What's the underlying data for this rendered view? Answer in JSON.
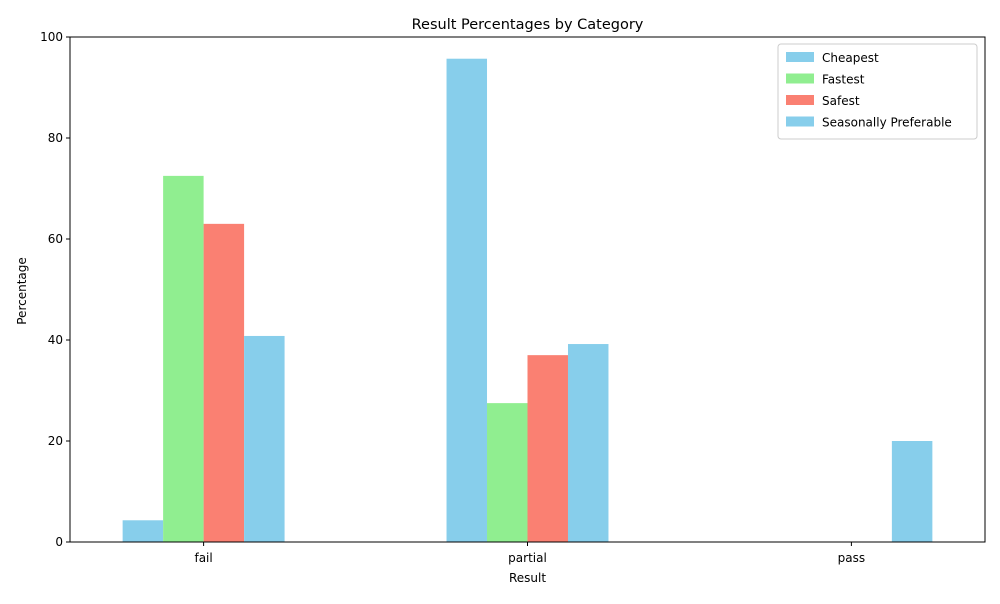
{
  "chart_data": {
    "type": "bar",
    "title": "Result Percentages by Category",
    "xlabel": "Result",
    "ylabel": "Percentage",
    "categories": [
      "fail",
      "partial",
      "pass"
    ],
    "ylim": [
      0,
      100
    ],
    "yticks": [
      0,
      20,
      40,
      60,
      80,
      100
    ],
    "grid": false,
    "legend_position": "top-right",
    "series": [
      {
        "name": "Cheapest",
        "color": "#87CEEB",
        "values": [
          4.3,
          95.7,
          0
        ]
      },
      {
        "name": "Fastest",
        "color": "#90EE90",
        "values": [
          72.5,
          27.5,
          0
        ]
      },
      {
        "name": "Safest",
        "color": "#FA8072",
        "values": [
          63.0,
          37.0,
          0
        ]
      },
      {
        "name": "Seasonally Preferable",
        "color": "#87CEEB",
        "values": [
          40.8,
          39.2,
          20.0
        ]
      }
    ]
  }
}
